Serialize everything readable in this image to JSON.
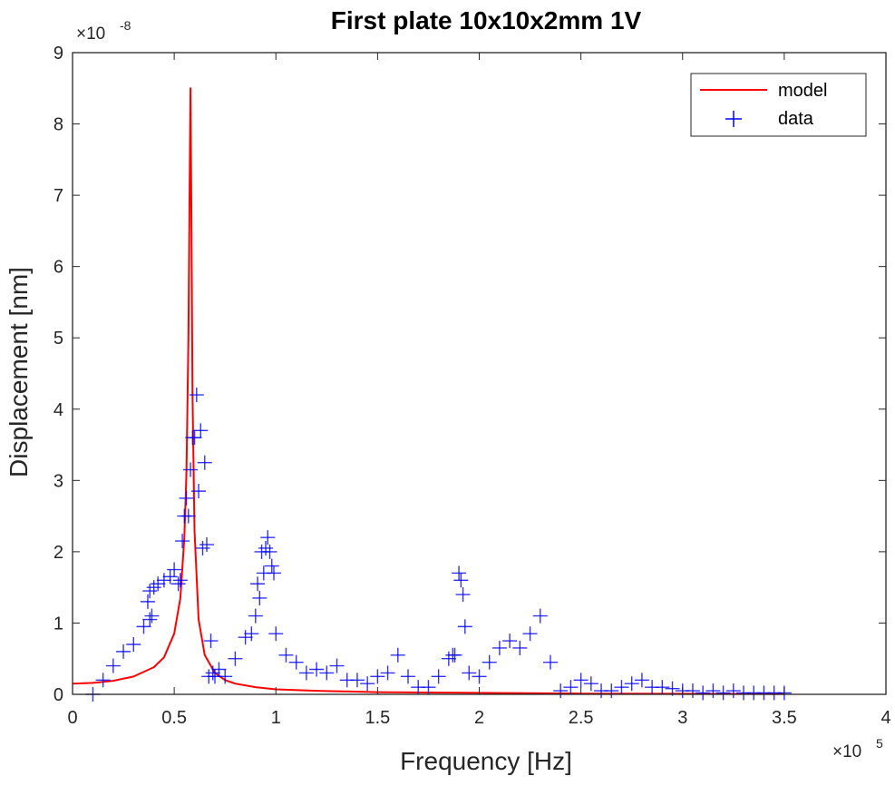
{
  "chart_data": {
    "type": "line",
    "title": "First plate 10x10x2mm 1V",
    "xlabel": "Frequency [Hz]",
    "ylabel": "Displacement [nm]",
    "x_exponent": "×10",
    "x_exponent_power": "5",
    "y_exponent": "×10",
    "y_exponent_power": "-8",
    "xlim": [
      0,
      4
    ],
    "ylim": [
      0,
      9
    ],
    "x_ticks": [
      "0",
      "0.5",
      "1",
      "1.5",
      "2",
      "2.5",
      "3",
      "3.5",
      "4"
    ],
    "y_ticks": [
      "0",
      "1",
      "2",
      "3",
      "4",
      "5",
      "6",
      "7",
      "8",
      "9"
    ],
    "grid": false,
    "legend_position": "top-right",
    "legend": [
      {
        "label": "model",
        "color": "#ff0000",
        "style": "line"
      },
      {
        "label": "data",
        "color": "#0000ff",
        "style": "plus"
      }
    ],
    "series": [
      {
        "name": "model",
        "type": "line",
        "color": "#ff0000",
        "x": [
          0.0,
          0.1,
          0.2,
          0.3,
          0.4,
          0.45,
          0.5,
          0.53,
          0.55,
          0.56,
          0.57,
          0.575,
          0.58,
          0.585,
          0.59,
          0.6,
          0.62,
          0.65,
          0.7,
          0.75,
          0.8,
          0.9,
          1.0,
          1.2,
          1.5,
          2.0,
          2.5,
          3.0,
          3.5
        ],
        "y": [
          0.15,
          0.16,
          0.19,
          0.25,
          0.38,
          0.52,
          0.85,
          1.35,
          2.2,
          3.1,
          5.0,
          6.8,
          8.5,
          6.5,
          4.2,
          2.3,
          1.05,
          0.55,
          0.3,
          0.2,
          0.15,
          0.1,
          0.07,
          0.05,
          0.03,
          0.02,
          0.01,
          0.008,
          0.005
        ]
      },
      {
        "name": "data",
        "type": "scatter",
        "color": "#0000ff",
        "x": [
          0.1,
          0.15,
          0.2,
          0.25,
          0.3,
          0.35,
          0.37,
          0.38,
          0.38,
          0.39,
          0.4,
          0.42,
          0.45,
          0.48,
          0.5,
          0.52,
          0.53,
          0.54,
          0.55,
          0.56,
          0.57,
          0.58,
          0.59,
          0.6,
          0.61,
          0.62,
          0.63,
          0.64,
          0.65,
          0.66,
          0.67,
          0.68,
          0.69,
          0.7,
          0.72,
          0.75,
          0.8,
          0.85,
          0.88,
          0.9,
          0.91,
          0.92,
          0.93,
          0.94,
          0.95,
          0.96,
          0.97,
          0.98,
          0.99,
          1.0,
          1.05,
          1.1,
          1.15,
          1.2,
          1.25,
          1.3,
          1.35,
          1.4,
          1.45,
          1.5,
          1.55,
          1.6,
          1.65,
          1.7,
          1.75,
          1.8,
          1.85,
          1.87,
          1.88,
          1.9,
          1.91,
          1.92,
          1.93,
          1.95,
          2.0,
          2.05,
          2.1,
          2.15,
          2.2,
          2.25,
          2.3,
          2.35,
          2.4,
          2.45,
          2.5,
          2.55,
          2.6,
          2.65,
          2.7,
          2.75,
          2.8,
          2.85,
          2.9,
          2.95,
          3.0,
          3.05,
          3.1,
          3.15,
          3.2,
          3.25,
          3.3,
          3.35,
          3.4,
          3.45,
          3.5
        ],
        "y": [
          0.0,
          0.2,
          0.4,
          0.6,
          0.7,
          0.95,
          1.3,
          1.45,
          1.05,
          1.1,
          1.5,
          1.55,
          1.6,
          1.65,
          1.75,
          1.55,
          1.6,
          2.15,
          2.5,
          2.75,
          2.5,
          3.15,
          3.6,
          3.6,
          4.2,
          2.85,
          3.7,
          2.05,
          3.25,
          2.1,
          0.25,
          0.75,
          0.3,
          0.25,
          0.35,
          0.25,
          0.5,
          0.8,
          0.85,
          1.1,
          1.55,
          1.35,
          2.0,
          1.7,
          2.05,
          2.2,
          2.0,
          1.8,
          1.7,
          0.85,
          0.55,
          0.45,
          0.3,
          0.35,
          0.3,
          0.4,
          0.2,
          0.2,
          0.15,
          0.25,
          0.3,
          0.55,
          0.25,
          0.1,
          0.1,
          0.25,
          0.5,
          0.55,
          0.55,
          1.7,
          1.6,
          1.4,
          0.95,
          0.3,
          0.25,
          0.45,
          0.65,
          0.75,
          0.65,
          0.85,
          1.1,
          0.45,
          0.05,
          0.1,
          0.2,
          0.15,
          0.05,
          0.05,
          0.1,
          0.15,
          0.2,
          0.1,
          0.1,
          0.08,
          0.05,
          0.05,
          0.02,
          0.05,
          0.02,
          0.05,
          0.02,
          0.02,
          0.02,
          0.02,
          0.02
        ]
      }
    ]
  }
}
